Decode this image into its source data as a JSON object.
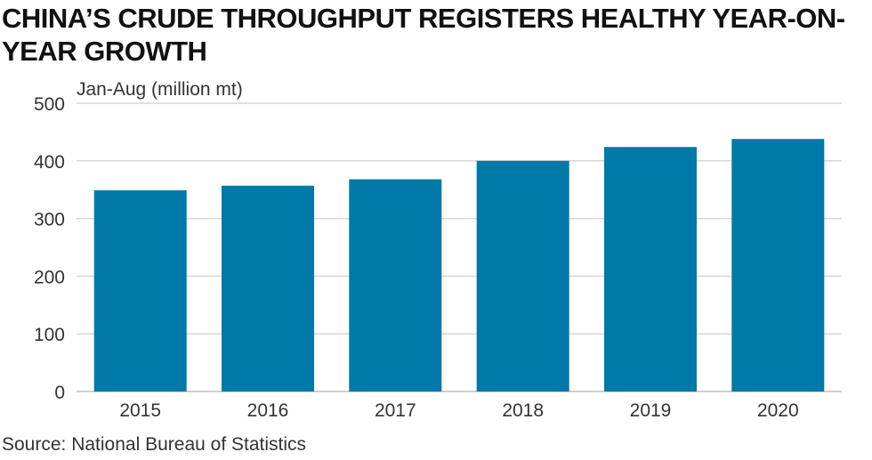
{
  "title": "CHINA’S CRUDE THROUGHPUT REGISTERS HEALTHY YEAR-ON-YEAR GROWTH",
  "source": "Source: National Bureau of Statistics",
  "chart_data": {
    "type": "bar",
    "title": "CHINA’S CRUDE THROUGHPUT REGISTERS HEALTHY YEAR-ON-YEAR GROWTH",
    "ylabel": "Jan-Aug (million mt)",
    "xlabel": "",
    "categories": [
      "2015",
      "2016",
      "2017",
      "2018",
      "2019",
      "2020"
    ],
    "values": [
      349,
      357,
      368,
      400,
      424,
      438
    ],
    "ylim": [
      0,
      500
    ],
    "yticks": [
      0,
      100,
      200,
      300,
      400,
      500
    ],
    "grid": true,
    "bar_color": "#0079A8",
    "grid_color": "#D6D6D6"
  }
}
